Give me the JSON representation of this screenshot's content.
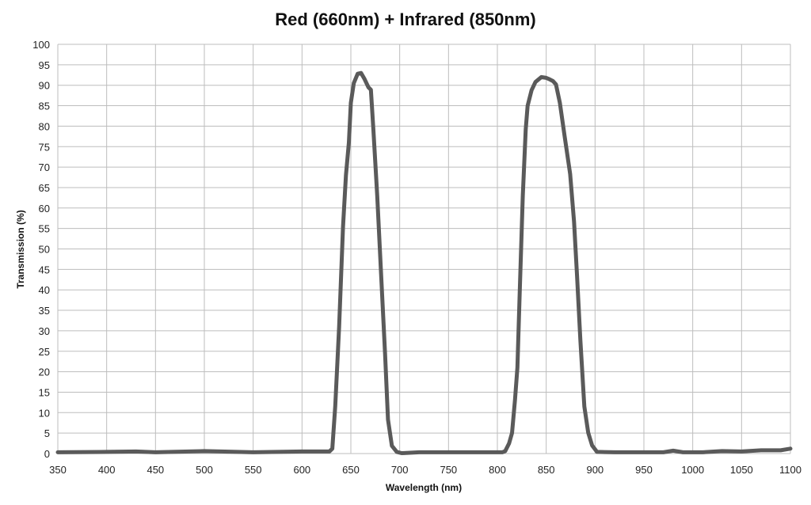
{
  "chart_data": {
    "type": "line",
    "title": "Red (660nm) + Infrared (850nm)",
    "xlabel": "Wavelength (nm)",
    "ylabel": "Transmission (%)",
    "xlim": [
      350,
      1100
    ],
    "ylim": [
      0,
      100
    ],
    "xticks": [
      350,
      400,
      450,
      500,
      550,
      600,
      650,
      700,
      750,
      800,
      850,
      900,
      950,
      1000,
      1050,
      1100
    ],
    "yticks": [
      0,
      5,
      10,
      15,
      20,
      25,
      30,
      35,
      40,
      45,
      50,
      55,
      60,
      65,
      70,
      75,
      80,
      85,
      90,
      95,
      100
    ],
    "grid": true,
    "line_color": "#5a5a5a",
    "series": [
      {
        "name": "Transmission",
        "x": [
          350,
          400,
          430,
          450,
          500,
          550,
          600,
          620,
          628,
          631,
          634,
          638,
          642,
          645,
          648,
          650,
          653,
          657,
          660.5,
          664,
          668,
          670.5,
          673,
          677,
          681,
          685,
          688,
          692,
          697,
          702,
          720,
          750,
          780,
          805,
          808,
          812,
          815,
          818,
          820.5,
          823,
          826,
          829,
          831,
          835,
          839,
          845,
          850,
          853,
          857,
          860,
          864,
          869,
          874.5,
          878.5,
          881.5,
          885,
          889,
          893,
          897,
          902,
          920,
          950,
          970,
          980,
          990,
          1010,
          1030,
          1050,
          1070,
          1090,
          1100
        ],
        "y": [
          0.3,
          0.4,
          0.5,
          0.3,
          0.6,
          0.3,
          0.5,
          0.5,
          0.5,
          1.2,
          11.6,
          31,
          55.4,
          68,
          76,
          85.7,
          90.5,
          92.8,
          93,
          91.5,
          89.5,
          88.9,
          79.3,
          63,
          43.8,
          24.4,
          8.3,
          1.9,
          0.4,
          0.1,
          0.3,
          0.3,
          0.3,
          0.3,
          0.6,
          2.5,
          5,
          13,
          21,
          40.5,
          63,
          79.2,
          85,
          88.8,
          90.8,
          92,
          91.8,
          91.5,
          91,
          90.2,
          85.7,
          77.3,
          68.3,
          56.7,
          43.8,
          27.7,
          11.5,
          5.1,
          2,
          0.4,
          0.3,
          0.3,
          0.3,
          0.7,
          0.3,
          0.3,
          0.6,
          0.5,
          0.8,
          0.8,
          1.2
        ]
      }
    ]
  }
}
